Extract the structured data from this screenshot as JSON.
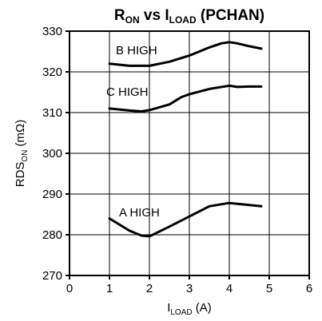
{
  "chart_data": {
    "type": "line",
    "title": {
      "main": "R",
      "main_sub": "ON",
      "middle": " vs I",
      "middle_sub": "LOAD",
      "tail": " (PCHAN)"
    },
    "xlabel": {
      "main": "I",
      "sub": "LOAD",
      "tail": " (A)"
    },
    "ylabel": {
      "main": "RDS",
      "sub": "ON",
      "tail": " (mΩ)"
    },
    "xlim": [
      0,
      6
    ],
    "ylim": [
      270,
      330
    ],
    "x_ticks": [
      "0",
      "1",
      "2",
      "3",
      "4",
      "5",
      "6"
    ],
    "y_ticks": [
      "270",
      "280",
      "290",
      "300",
      "310",
      "320",
      "330"
    ],
    "grid": true,
    "series": [
      {
        "name": "B HIGH",
        "x": [
          1.0,
          1.5,
          2.0,
          2.5,
          3.0,
          3.5,
          3.8,
          4.0,
          4.2,
          4.5,
          4.8
        ],
        "y": [
          322,
          321.5,
          321.5,
          322.5,
          324,
          326,
          327,
          327.3,
          327,
          326.3,
          325.7
        ]
      },
      {
        "name": "C HIGH",
        "x": [
          1.0,
          1.5,
          1.8,
          2.0,
          2.5,
          2.8,
          3.0,
          3.5,
          4.0,
          4.2,
          4.5,
          4.8
        ],
        "y": [
          311,
          310.5,
          310.3,
          310.6,
          312,
          313.8,
          314.5,
          315.8,
          316.6,
          316.3,
          316.4,
          316.4
        ]
      },
      {
        "name": "A HIGH",
        "x": [
          1.0,
          1.5,
          1.8,
          2.0,
          2.5,
          3.0,
          3.5,
          4.0,
          4.3,
          4.8
        ],
        "y": [
          284,
          281,
          279.8,
          279.6,
          282,
          284.5,
          287,
          287.8,
          287.5,
          287
        ]
      }
    ]
  }
}
